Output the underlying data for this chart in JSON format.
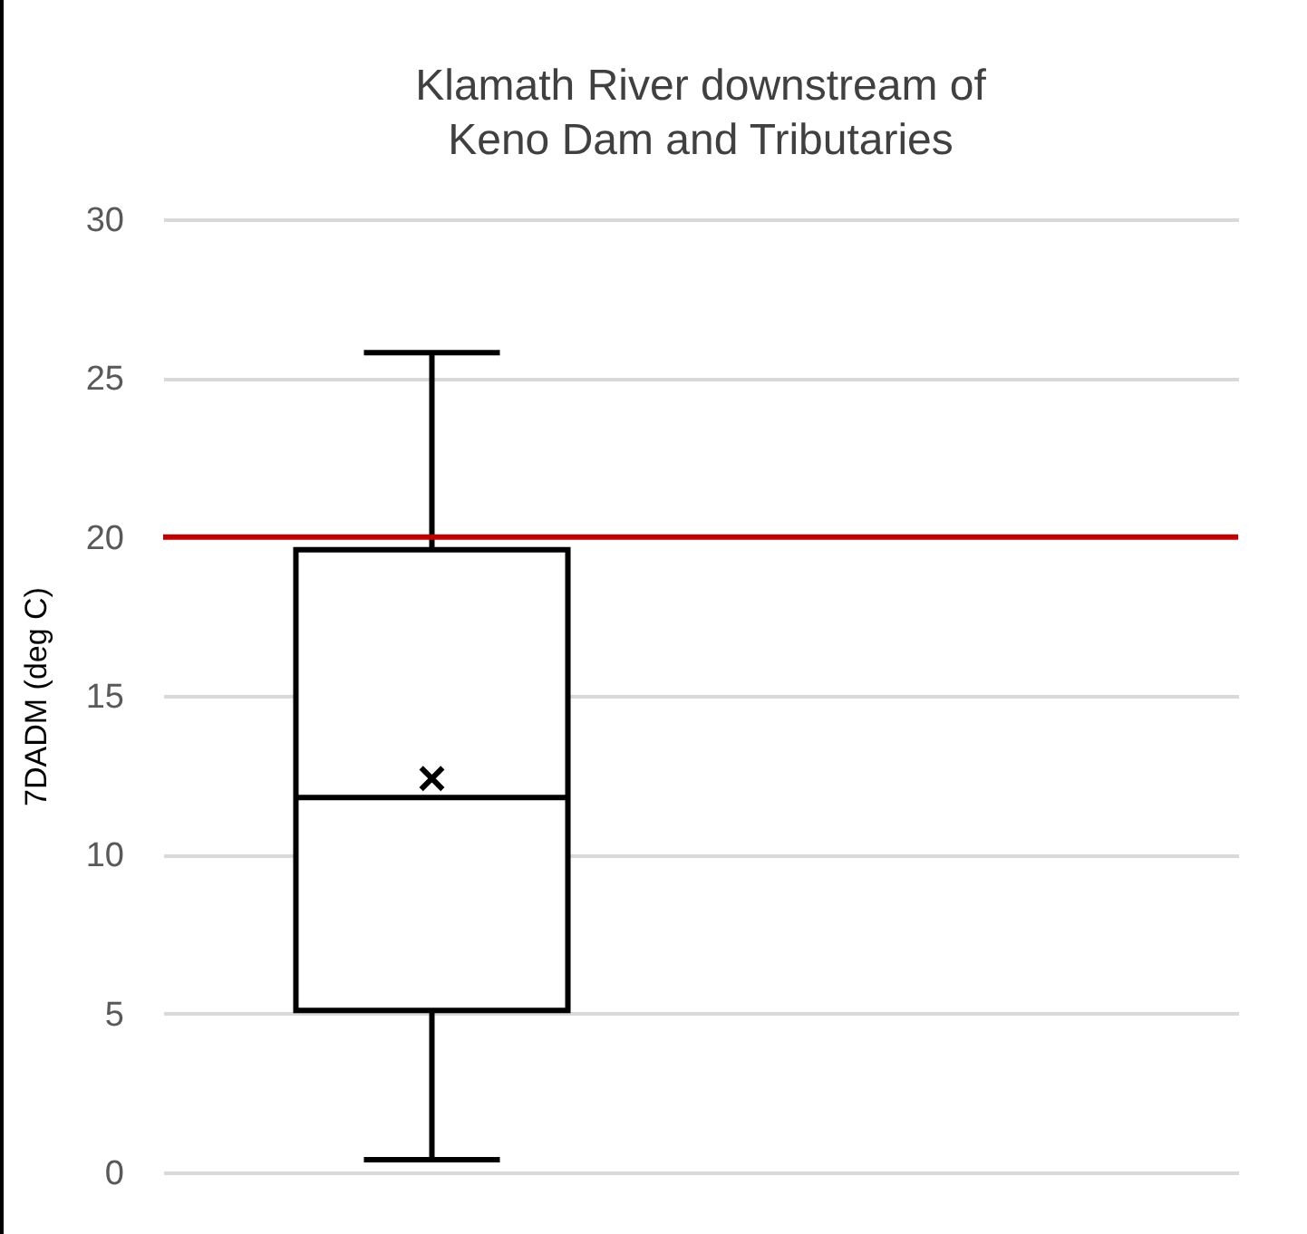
{
  "chart_data": {
    "type": "box",
    "title": "Klamath River downstream of Keno Dam and Tributaries",
    "ylabel": "7DADM (deg C)",
    "categories": [
      null
    ],
    "boxes": [
      {
        "low": 0.4,
        "q1": 5.1,
        "median": 11.8,
        "q3": 19.6,
        "high": 25.8,
        "mean": 12.4
      }
    ],
    "ylim": [
      0,
      30
    ],
    "yticks": [
      0,
      5,
      10,
      15,
      20,
      25,
      30
    ],
    "grid": "y",
    "tick_labels": "y",
    "ref_lines": [
      {
        "axis": "y",
        "value": 20,
        "color": "#c00000"
      }
    ]
  }
}
